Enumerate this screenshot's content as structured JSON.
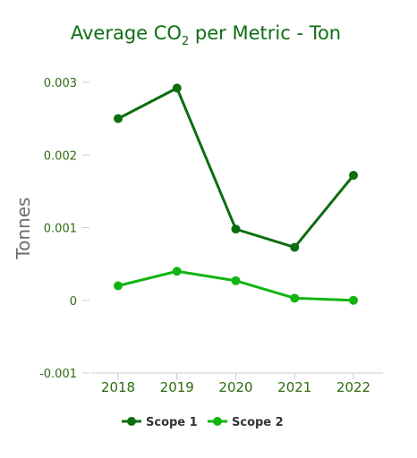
{
  "chart_data": {
    "type": "line",
    "title": {
      "prefix": "Average CO",
      "subscript": "2",
      "suffix": " per Metric - Ton"
    },
    "xlabel": "",
    "ylabel": "Tonnes",
    "categories": [
      "2018",
      "2019",
      "2020",
      "2021",
      "2022"
    ],
    "ylim": [
      -0.001,
      0.003
    ],
    "yticks": [
      -0.001,
      0,
      0.001,
      0.002,
      0.003
    ],
    "ytick_labels": [
      "-0.001",
      "0",
      "0.001",
      "0.002",
      "0.003"
    ],
    "grid": false,
    "legend": "bottom",
    "series": [
      {
        "name": "Scope 1",
        "color": "#0b6e0f",
        "values": [
          0.0025,
          0.00292,
          0.00098,
          0.00073,
          0.00172
        ]
      },
      {
        "name": "Scope 2",
        "color": "#11b511",
        "values": [
          0.0002,
          0.0004,
          0.00027,
          3e-05,
          0.0
        ]
      }
    ]
  }
}
